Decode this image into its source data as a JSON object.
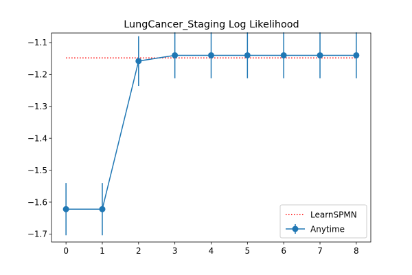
{
  "chart_data": {
    "type": "line",
    "title": "LungCancer_Staging Log Likelihood",
    "xlabel": "",
    "ylabel": "",
    "x": [
      0,
      1,
      2,
      3,
      4,
      5,
      6,
      7,
      8
    ],
    "xlim": [
      -0.4,
      8.4
    ],
    "ylim": [
      -1.725,
      -1.07
    ],
    "x_ticks": [
      "0",
      "1",
      "2",
      "3",
      "4",
      "5",
      "6",
      "7",
      "8"
    ],
    "y_ticks": [
      -1.1,
      -1.2,
      -1.3,
      -1.4,
      -1.5,
      -1.6,
      -1.7
    ],
    "y_tick_labels": [
      "−1.1",
      "−1.2",
      "−1.3",
      "−1.4",
      "−1.5",
      "−1.6",
      "−1.7"
    ],
    "grid": false,
    "legend_position": "lower-right",
    "series": [
      {
        "name": "LearnSPMN",
        "style": "dotted",
        "color": "#ff0000",
        "x": [
          0,
          8
        ],
        "values": [
          -1.148,
          -1.148
        ]
      },
      {
        "name": "Anytime",
        "style": "solid-marker-errorbar",
        "color": "#1f77b4",
        "values": [
          -1.622,
          -1.622,
          -1.158,
          -1.14,
          -1.14,
          -1.14,
          -1.14,
          -1.14,
          -1.14
        ],
        "errors": [
          0.082,
          0.082,
          0.078,
          0.072,
          0.072,
          0.072,
          0.072,
          0.072,
          0.072
        ]
      }
    ]
  }
}
